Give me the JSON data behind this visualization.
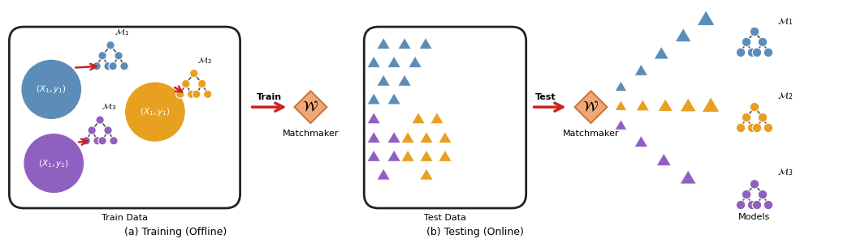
{
  "fig_width": 10.6,
  "fig_height": 3.0,
  "dpi": 100,
  "bg_color": "#ffffff",
  "caption_a": "(a) Training (Offline)",
  "caption_b": "(b) Testing (Online)",
  "color_blue": "#5B8DB8",
  "color_gold": "#E8A020",
  "color_purple": "#9060C0",
  "color_red": "#CC2222",
  "color_diamond": "#F0A878",
  "color_diamond_edge": "#C87840",
  "panel_box_color": "#222222",
  "train_label": "Train Data",
  "test_label": "Test Data",
  "matchmaker_label": "Matchmaker",
  "train_arrow_label": "Train",
  "test_arrow_label": "Test",
  "models_label": "Models",
  "m1_label": "$\\mathcal{M}_1$",
  "m2_label": "$\\mathcal{M}_2$",
  "m3_label": "$\\mathcal{M}_3$"
}
